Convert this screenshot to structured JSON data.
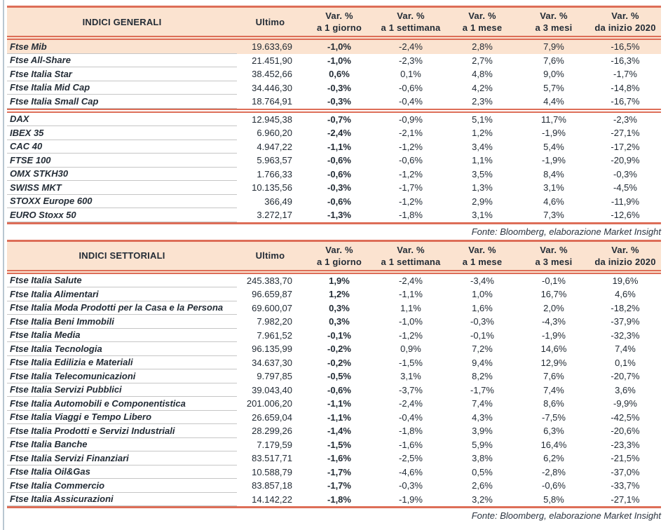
{
  "colors": {
    "accent_coral": "#dd6e58",
    "header_peach": "#fbe3d0",
    "text_ink": "#232c36",
    "row_separator_gray": "#c6c6c6",
    "page_edge_blue": "#b9c7d1"
  },
  "tables": [
    {
      "title": "INDICI GENERALI",
      "ultimo_label": "Ultimo",
      "var_cols": [
        {
          "l1": "Var. %",
          "l2": "a 1 giorno"
        },
        {
          "l1": "Var. %",
          "l2": "a 1 settimana"
        },
        {
          "l1": "Var. %",
          "l2": "a 1 mese"
        },
        {
          "l1": "Var. %",
          "l2": "a 3 mesi"
        },
        {
          "l1": "Var. %",
          "l2": "da inizio 2020"
        }
      ],
      "groups": [
        {
          "rows": [
            {
              "name": "Ftse Mib",
              "ultimo": "19.633,69",
              "d1": "-1,0%",
              "w1": "-2,4%",
              "m1": "2,8%",
              "m3": "7,9%",
              "ytd": "-16,5%",
              "highlight": true
            },
            {
              "name": "Ftse All-Share",
              "ultimo": "21.451,90",
              "d1": "-1,0%",
              "w1": "-2,3%",
              "m1": "2,7%",
              "m3": "7,6%",
              "ytd": "-16,3%"
            },
            {
              "name": "Ftse Italia Star",
              "ultimo": "38.452,66",
              "d1": "0,6%",
              "w1": "0,1%",
              "m1": "4,8%",
              "m3": "9,0%",
              "ytd": "-1,7%"
            },
            {
              "name": "Ftse Italia Mid Cap",
              "ultimo": "34.446,30",
              "d1": "-0,3%",
              "w1": "-0,6%",
              "m1": "4,2%",
              "m3": "5,7%",
              "ytd": "-14,8%"
            },
            {
              "name": "Ftse Italia Small Cap",
              "ultimo": "18.764,91",
              "d1": "-0,3%",
              "w1": "-0,4%",
              "m1": "2,3%",
              "m3": "4,4%",
              "ytd": "-16,7%"
            }
          ]
        },
        {
          "rows": [
            {
              "name": "DAX",
              "ultimo": "12.945,38",
              "d1": "-0,7%",
              "w1": "-0,9%",
              "m1": "5,1%",
              "m3": "11,7%",
              "ytd": "-2,3%"
            },
            {
              "name": "IBEX 35",
              "ultimo": "6.960,20",
              "d1": "-2,4%",
              "w1": "-2,1%",
              "m1": "1,2%",
              "m3": "-1,9%",
              "ytd": "-27,1%"
            },
            {
              "name": "CAC 40",
              "ultimo": "4.947,22",
              "d1": "-1,1%",
              "w1": "-1,2%",
              "m1": "3,4%",
              "m3": "5,4%",
              "ytd": "-17,2%"
            },
            {
              "name": "FTSE 100",
              "ultimo": "5.963,57",
              "d1": "-0,6%",
              "w1": "-0,6%",
              "m1": "1,1%",
              "m3": "-1,9%",
              "ytd": "-20,9%"
            },
            {
              "name": "OMX STKH30",
              "ultimo": "1.766,33",
              "d1": "-0,6%",
              "w1": "-1,2%",
              "m1": "3,5%",
              "m3": "8,4%",
              "ytd": "-0,3%"
            },
            {
              "name": "SWISS MKT",
              "ultimo": "10.135,56",
              "d1": "-0,3%",
              "w1": "-1,7%",
              "m1": "1,3%",
              "m3": "3,1%",
              "ytd": "-4,5%"
            },
            {
              "name": "STOXX Europe 600",
              "ultimo": "366,49",
              "d1": "-0,6%",
              "w1": "-1,2%",
              "m1": "2,9%",
              "m3": "4,6%",
              "ytd": "-11,9%"
            },
            {
              "name": "EURO Stoxx 50",
              "ultimo": "3.272,17",
              "d1": "-1,3%",
              "w1": "-1,8%",
              "m1": "3,1%",
              "m3": "7,3%",
              "ytd": "-12,6%"
            }
          ]
        }
      ],
      "fonte": "Fonte: Bloomberg, elaborazione Market Insight"
    },
    {
      "title": "INDICI SETTORIALI",
      "ultimo_label": "Ultimo",
      "var_cols": [
        {
          "l1": "Var. %",
          "l2": "a 1 giorno"
        },
        {
          "l1": "Var. %",
          "l2": "a 1 settimana"
        },
        {
          "l1": "Var. %",
          "l2": "a 1 mese"
        },
        {
          "l1": "Var. %",
          "l2": "a 3 mesi"
        },
        {
          "l1": "Var. %",
          "l2": "da inizio 2020"
        }
      ],
      "groups": [
        {
          "rows": [
            {
              "name": "Ftse Italia Salute",
              "ultimo": "245.383,70",
              "d1": "1,9%",
              "w1": "-2,4%",
              "m1": "-3,4%",
              "m3": "-0,1%",
              "ytd": "19,6%"
            },
            {
              "name": "Ftse Italia Alimentari",
              "ultimo": "96.659,87",
              "d1": "1,2%",
              "w1": "-1,1%",
              "m1": "1,0%",
              "m3": "16,7%",
              "ytd": "4,6%"
            },
            {
              "name": "Ftse Italia Moda Prodotti per la Casa e la Persona",
              "ultimo": "69.600,07",
              "d1": "0,3%",
              "w1": "1,1%",
              "m1": "1,6%",
              "m3": "2,0%",
              "ytd": "-18,2%"
            },
            {
              "name": "Ftse Italia Beni Immobili",
              "ultimo": "7.982,20",
              "d1": "0,3%",
              "w1": "-1,0%",
              "m1": "-0,3%",
              "m3": "-4,3%",
              "ytd": "-37,9%"
            },
            {
              "name": "Ftse Italia Media",
              "ultimo": "7.961,52",
              "d1": "-0,1%",
              "w1": "-1,2%",
              "m1": "-0,1%",
              "m3": "-1,9%",
              "ytd": "-32,3%"
            },
            {
              "name": "Ftse Italia Tecnologia",
              "ultimo": "96.135,99",
              "d1": "-0,2%",
              "w1": "0,9%",
              "m1": "7,2%",
              "m3": "14,6%",
              "ytd": "7,4%"
            },
            {
              "name": "Ftse Italia Edilizia e Materiali",
              "ultimo": "34.637,30",
              "d1": "-0,2%",
              "w1": "-1,5%",
              "m1": "9,4%",
              "m3": "12,9%",
              "ytd": "0,1%"
            },
            {
              "name": "Ftse Italia Telecomunicazioni",
              "ultimo": "9.797,85",
              "d1": "-0,5%",
              "w1": "3,1%",
              "m1": "8,2%",
              "m3": "7,6%",
              "ytd": "-20,7%"
            },
            {
              "name": "Ftse Italia Servizi Pubblici",
              "ultimo": "39.043,40",
              "d1": "-0,6%",
              "w1": "-3,7%",
              "m1": "-1,7%",
              "m3": "7,4%",
              "ytd": "3,6%"
            },
            {
              "name": "Ftse Italia Automobili e Componentistica",
              "ultimo": "201.006,20",
              "d1": "-1,1%",
              "w1": "-2,4%",
              "m1": "7,4%",
              "m3": "8,6%",
              "ytd": "-9,9%"
            },
            {
              "name": "Ftse Italia Viaggi e Tempo Libero",
              "ultimo": "26.659,04",
              "d1": "-1,1%",
              "w1": "-0,4%",
              "m1": "4,3%",
              "m3": "-7,5%",
              "ytd": "-42,5%"
            },
            {
              "name": "Ftse Italia Prodotti e Servizi Industriali",
              "ultimo": "28.299,26",
              "d1": "-1,4%",
              "w1": "-1,8%",
              "m1": "3,9%",
              "m3": "6,3%",
              "ytd": "-20,6%"
            },
            {
              "name": "Ftse Italia Banche",
              "ultimo": "7.179,59",
              "d1": "-1,5%",
              "w1": "-1,6%",
              "m1": "5,9%",
              "m3": "16,4%",
              "ytd": "-23,3%"
            },
            {
              "name": "Ftse Italia Servizi Finanziari",
              "ultimo": "83.517,71",
              "d1": "-1,6%",
              "w1": "-2,5%",
              "m1": "3,8%",
              "m3": "6,2%",
              "ytd": "-21,5%"
            },
            {
              "name": "Ftse Italia Oil&Gas",
              "ultimo": "10.588,79",
              "d1": "-1,7%",
              "w1": "-4,6%",
              "m1": "0,5%",
              "m3": "-2,8%",
              "ytd": "-37,0%"
            },
            {
              "name": "Ftse Italia Commercio",
              "ultimo": "83.857,18",
              "d1": "-1,7%",
              "w1": "-0,3%",
              "m1": "2,6%",
              "m3": "-0,6%",
              "ytd": "-33,7%"
            },
            {
              "name": "Ftse Italia Assicurazioni",
              "ultimo": "14.142,22",
              "d1": "-1,8%",
              "w1": "-1,9%",
              "m1": "3,2%",
              "m3": "5,8%",
              "ytd": "-27,1%"
            }
          ]
        }
      ],
      "fonte": "Fonte: Bloomberg, elaborazione Market Insight"
    }
  ]
}
